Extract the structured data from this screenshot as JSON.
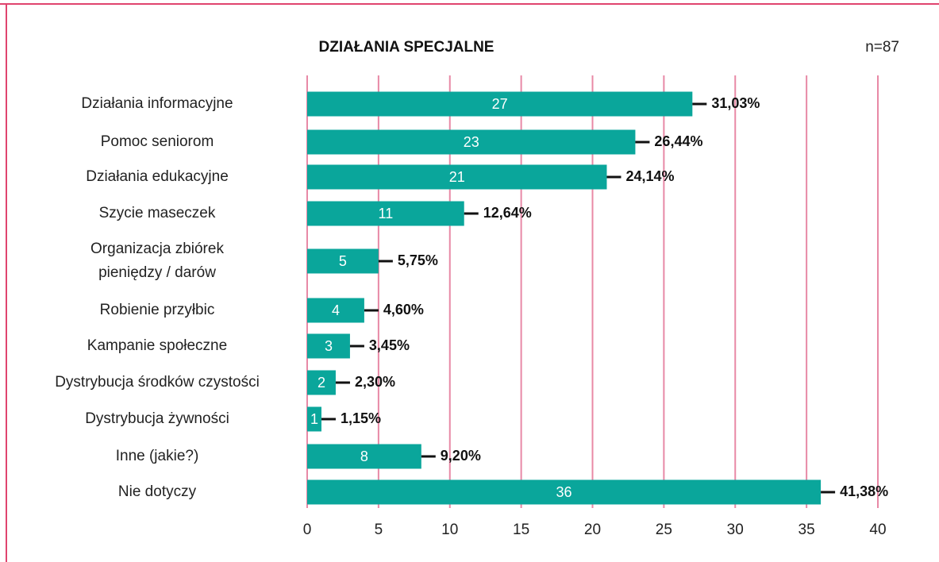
{
  "chart_data": {
    "type": "barh",
    "title": "DZIAŁANIA SPECJALNE",
    "note": "n=87",
    "categories": [
      "Działania informacyjne",
      "Pomoc seniorom",
      "Działania edukacyjne",
      "Szycie maseczek",
      "Organizacja zbiórek\npieniędzy / darów",
      "Robienie przyłbic",
      "Kampanie społeczne",
      "Dystrybucja środków czystości",
      "Dystrybucja żywności",
      "Inne (jakie?)",
      "Nie dotyczy"
    ],
    "values": [
      27,
      23,
      21,
      11,
      5,
      4,
      3,
      2,
      1,
      8,
      36
    ],
    "color": "#0aa69b",
    "percent": {
      "values": [
        31.03,
        26.44,
        24.14,
        12.64,
        5.75,
        4.6,
        3.45,
        2.3,
        1.15,
        9.2,
        41.38
      ],
      "value_labels": [
        "31,03%",
        "26,44%",
        "24,14%",
        "12,64%",
        "5,75%",
        "4,60%",
        "3,45%",
        "2,30%",
        "1,15%",
        "9,20%",
        "41,38%"
      ]
    },
    "xlim": [
      0,
      40
    ],
    "xticks": [
      0,
      5,
      10,
      15,
      20,
      25,
      30,
      35,
      40
    ],
    "grid": true
  }
}
